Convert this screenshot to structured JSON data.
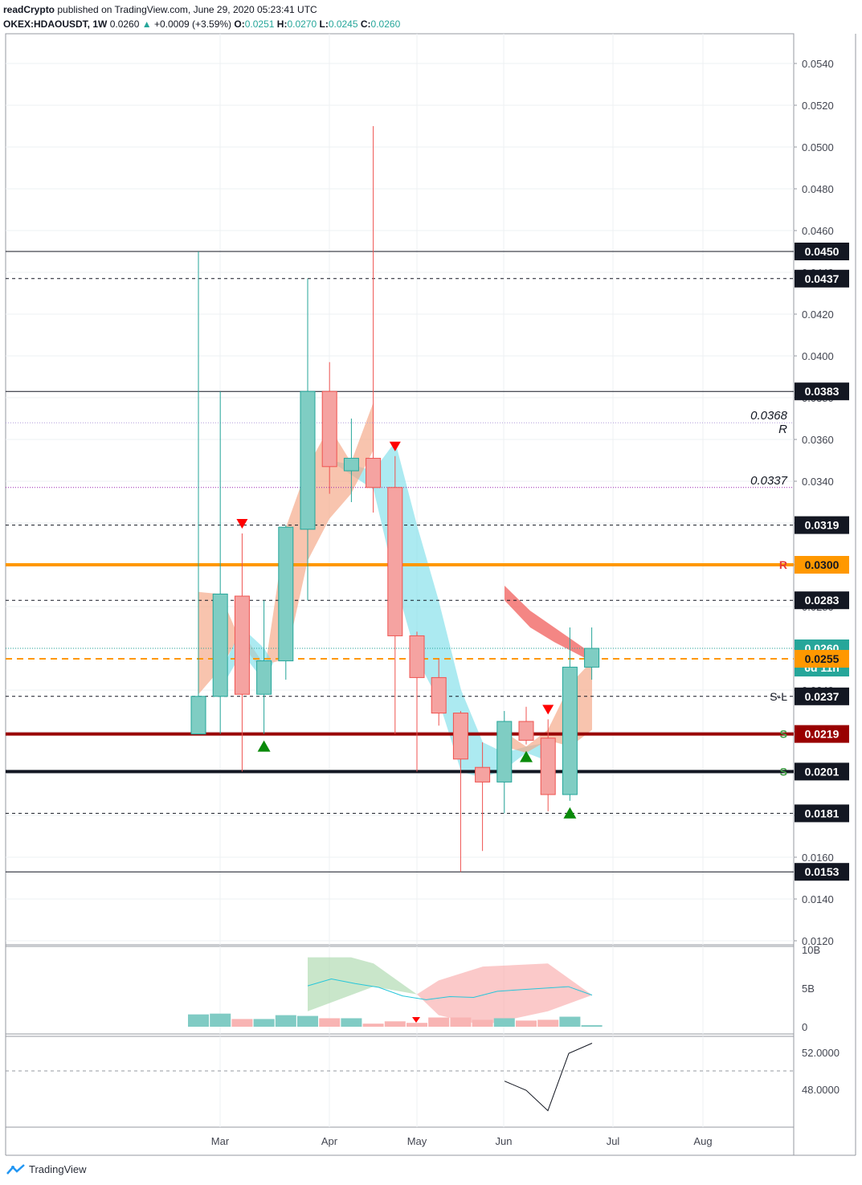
{
  "header": {
    "line1_author": "readCrypto",
    "line1_rest": "published on TradingView.com, June 29, 2020 05:23:41 UTC",
    "symbol": "OKEX:HDAOUSDT, 1W",
    "last": "0.0260",
    "change": "+0.0009 (+3.59%)",
    "open_label": "O:",
    "open": "0.0251",
    "high_label": "H:",
    "high": "0.0270",
    "low_label": "L:",
    "low": "0.0245",
    "close_label": "C:",
    "close": "0.0260"
  },
  "brand": {
    "name": "TradingView"
  },
  "colors": {
    "bull": "#26a69a",
    "bear": "#ef5350",
    "orange": "#ff9800",
    "darkred": "#990000",
    "cyan_fill": "#80deea",
    "salmon_fill": "#f4a582"
  },
  "chart_data": [
    {
      "type": "candlestick",
      "interval": "1W",
      "ylim": [
        0.0118,
        0.0554
      ],
      "y_ticks": [
        "0.0120",
        "0.0140",
        "0.0160",
        "0.0180",
        "0.0200",
        "0.0220",
        "0.0240",
        "0.0260",
        "0.0280",
        "0.0300",
        "0.0320",
        "0.0340",
        "0.0360",
        "0.0380",
        "0.0400",
        "0.0420",
        "0.0440",
        "0.0460",
        "0.0480",
        "0.0500",
        "0.0520",
        "0.0540"
      ],
      "x_labels": [
        "Mar",
        "Apr",
        "May",
        "Jun",
        "Jul",
        "Aug"
      ],
      "candles": [
        {
          "week": 1,
          "o": 0.0219,
          "h": 0.045,
          "l": 0.0219,
          "c": 0.0237
        },
        {
          "week": 2,
          "o": 0.0237,
          "h": 0.0383,
          "l": 0.0219,
          "c": 0.0286
        },
        {
          "week": 3,
          "o": 0.0285,
          "h": 0.0315,
          "l": 0.0201,
          "c": 0.0238
        },
        {
          "week": 4,
          "o": 0.0238,
          "h": 0.0283,
          "l": 0.0219,
          "c": 0.0254
        },
        {
          "week": 5,
          "o": 0.0254,
          "h": 0.0319,
          "l": 0.0245,
          "c": 0.0318
        },
        {
          "week": 6,
          "o": 0.0317,
          "h": 0.0437,
          "l": 0.0283,
          "c": 0.0383
        },
        {
          "week": 7,
          "o": 0.0383,
          "h": 0.0397,
          "l": 0.0334,
          "c": 0.0347
        },
        {
          "week": 8,
          "o": 0.0345,
          "h": 0.037,
          "l": 0.033,
          "c": 0.0351
        },
        {
          "week": 9,
          "o": 0.0351,
          "h": 0.051,
          "l": 0.0325,
          "c": 0.0337
        },
        {
          "week": 10,
          "o": 0.0337,
          "h": 0.0352,
          "l": 0.0219,
          "c": 0.0266
        },
        {
          "week": 11,
          "o": 0.0266,
          "h": 0.0268,
          "l": 0.0201,
          "c": 0.0246
        },
        {
          "week": 12,
          "o": 0.0246,
          "h": 0.0255,
          "l": 0.0223,
          "c": 0.0229
        },
        {
          "week": 13,
          "o": 0.0229,
          "h": 0.023,
          "l": 0.0153,
          "c": 0.0207
        },
        {
          "week": 14,
          "o": 0.0203,
          "h": 0.0215,
          "l": 0.0163,
          "c": 0.0196
        },
        {
          "week": 15,
          "o": 0.0196,
          "h": 0.023,
          "l": 0.0181,
          "c": 0.0225
        },
        {
          "week": 16,
          "o": 0.0225,
          "h": 0.0232,
          "l": 0.0214,
          "c": 0.0216
        },
        {
          "week": 17,
          "o": 0.0217,
          "h": 0.0226,
          "l": 0.0182,
          "c": 0.019
        },
        {
          "week": 18,
          "o": 0.019,
          "h": 0.027,
          "l": 0.0187,
          "c": 0.0251
        },
        {
          "week": 19,
          "o": 0.0251,
          "h": 0.027,
          "l": 0.0245,
          "c": 0.026
        }
      ],
      "horizontal_levels": [
        {
          "value": 0.045,
          "style": "solid",
          "label": "0.0450"
        },
        {
          "value": 0.0437,
          "style": "dashed",
          "label": "0.0437"
        },
        {
          "value": 0.0383,
          "style": "solid",
          "label": "0.0383"
        },
        {
          "value": 0.0368,
          "style": "dotted",
          "label": "0.0368",
          "tag": "R"
        },
        {
          "value": 0.0337,
          "style": "dotted",
          "label": "0.0337"
        },
        {
          "value": 0.0319,
          "style": "dashed",
          "label": "0.0319"
        },
        {
          "value": 0.03,
          "style": "thick-orange",
          "label": "0.0300",
          "tag": "R"
        },
        {
          "value": 0.0283,
          "style": "dashed",
          "label": "0.0283"
        },
        {
          "value": 0.026,
          "style": "last",
          "label": "0.0260",
          "countdown": "6d 11h"
        },
        {
          "value": 0.0255,
          "style": "dashed-orange",
          "label": "0.0255"
        },
        {
          "value": 0.0237,
          "style": "dashed",
          "label": "0.0237",
          "tag": "S-L"
        },
        {
          "value": 0.0219,
          "style": "thick-darkred",
          "label": "0.0219",
          "tag": "S"
        },
        {
          "value": 0.0201,
          "style": "thick-black",
          "label": "0.0201",
          "tag": "S"
        },
        {
          "value": 0.0181,
          "style": "dashed",
          "label": "0.0181"
        },
        {
          "value": 0.0153,
          "style": "solid",
          "label": "0.0153"
        }
      ],
      "signals": [
        {
          "week": 3,
          "dir": "down"
        },
        {
          "week": 4,
          "dir": "up"
        },
        {
          "week": 10,
          "dir": "down"
        },
        {
          "week": 16,
          "dir": "up"
        },
        {
          "week": 17,
          "dir": "down"
        },
        {
          "week": 18,
          "dir": "up"
        }
      ]
    },
    {
      "type": "bar",
      "name": "Volume",
      "y_ticks": [
        "10B",
        "5B",
        "0"
      ],
      "ylim": [
        0,
        10
      ],
      "values": [
        1.6,
        1.7,
        1.0,
        1.0,
        1.5,
        1.4,
        1.1,
        1.1,
        0.4,
        0.7,
        0.5,
        1.2,
        1.2,
        0.9,
        1.1,
        0.8,
        0.9,
        1.3,
        0.2
      ],
      "bull": [
        1,
        1,
        0,
        1,
        1,
        1,
        0,
        1,
        0,
        0,
        0,
        0,
        0,
        0,
        1,
        0,
        0,
        1,
        1
      ],
      "ma": [
        5.3,
        6.2,
        5.6,
        5.1,
        4.0,
        3.5,
        3.9,
        3.8,
        4.6,
        4.8,
        5.0,
        5.2,
        4.1
      ]
    },
    {
      "type": "line",
      "name": "Oscillator",
      "y_ticks": [
        "52.0000",
        "48.0000"
      ],
      "ylim": [
        45.5,
        53.5
      ],
      "dashed_level": 50.0,
      "values": [
        48.9,
        47.9,
        45.7,
        51.9,
        53.0
      ]
    }
  ]
}
